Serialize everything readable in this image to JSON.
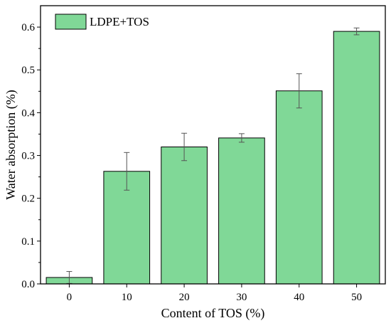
{
  "chart_data": {
    "type": "bar",
    "categories": [
      "0",
      "10",
      "20",
      "30",
      "40",
      "50"
    ],
    "series": [
      {
        "name": "LDPE+TOS",
        "values": [
          0.015,
          0.263,
          0.32,
          0.341,
          0.451,
          0.59
        ],
        "errors": [
          0.014,
          0.044,
          0.032,
          0.01,
          0.04,
          0.008
        ],
        "color": "#80d897"
      }
    ],
    "xlabel": "Content of  TOS (%)",
    "ylabel": "Water absorption (%)",
    "ylim": [
      0,
      0.65
    ],
    "yticks": [
      "0.0",
      "0.1",
      "0.2",
      "0.3",
      "0.4",
      "0.5",
      "0.6"
    ],
    "legend_position": "top-left",
    "grid": false
  }
}
